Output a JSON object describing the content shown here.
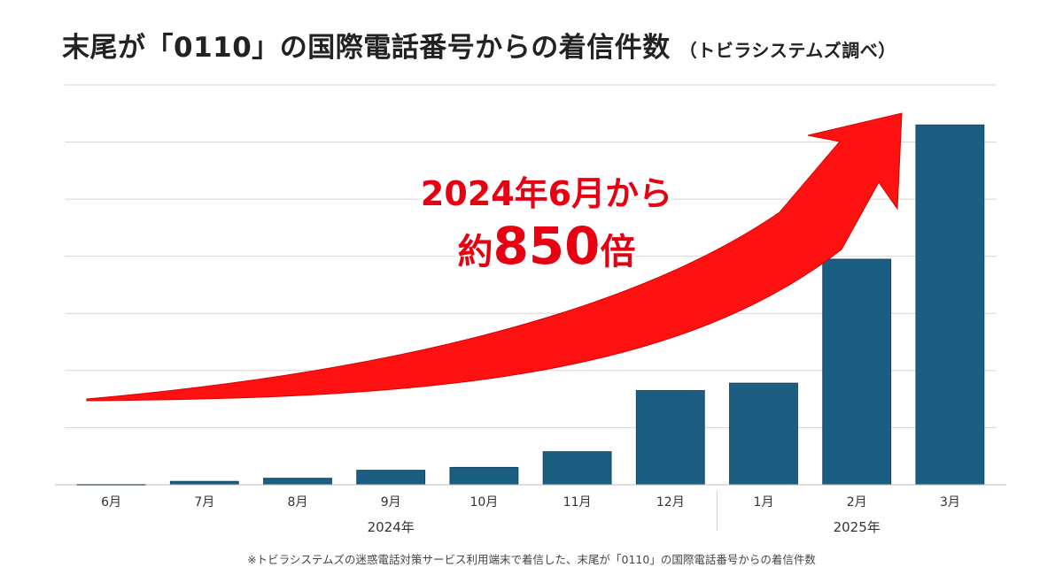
{
  "chart_data": {
    "type": "bar",
    "title": "末尾が「0110」の国際電話番号からの着信件数",
    "subtitle": "（トビラシステムズ調べ）",
    "categories": [
      "6月",
      "7月",
      "8月",
      "9月",
      "10月",
      "11月",
      "12月",
      "1月",
      "2月",
      "3月"
    ],
    "year_groups": [
      {
        "label": "2024年",
        "start": 0,
        "end": 6
      },
      {
        "label": "2025年",
        "start": 7,
        "end": 9
      }
    ],
    "series": [
      {
        "name": "着信件数",
        "values": [
          0.8,
          6,
          11.5,
          25.5,
          30.5,
          58,
          165,
          178,
          395,
          630
        ]
      }
    ],
    "ylim": [
      0,
      700
    ],
    "y_gridlines": [
      0,
      100,
      200,
      300,
      400,
      500,
      600,
      700
    ],
    "grid": true,
    "annotation": {
      "line1": "2024年6月から",
      "line2_prefix": "約",
      "line2_number": "850",
      "line2_suffix": "倍"
    },
    "footnote": "※トビラシステムズの迷惑電話対策サービス利用端末で着信した、末尾が「0110」の国際電話番号からの着信件数",
    "colors": {
      "bar": "#1b5e82",
      "arrow": "#ff1111",
      "annotation": "#e60012",
      "grid": "#d6d6d6"
    }
  }
}
